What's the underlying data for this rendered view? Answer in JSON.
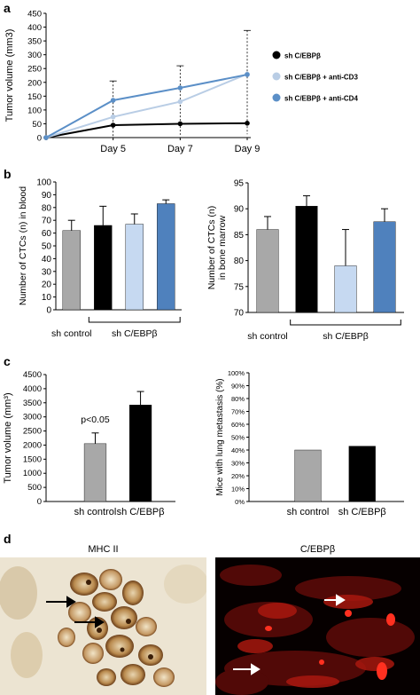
{
  "panels": {
    "a": "a",
    "b": "b",
    "c": "c",
    "d": "d"
  },
  "colors": {
    "black": "#000000",
    "grey": "#a8a8a8",
    "light_blue": "#c6d9f1",
    "mid_blue": "#4f81bd",
    "line_light": "#b9cde5",
    "line_blue": "#5b8fc7"
  },
  "micrographs": {
    "left_title": "MHC II",
    "right_title": "C/EBPβ"
  },
  "chart_data": [
    {
      "id": "a",
      "type": "line",
      "ylabel": "Tumor volume (mm3)",
      "xlabel": "",
      "x": [
        "",
        "Day 5",
        "Day 7",
        "Day 9"
      ],
      "ylim": [
        0,
        450
      ],
      "yticks": [
        0,
        50,
        100,
        150,
        200,
        250,
        300,
        350,
        400,
        450
      ],
      "series": [
        {
          "name": "sh C/EBPβ",
          "color": "#000000",
          "values": [
            0,
            45,
            50,
            52
          ]
        },
        {
          "name": "sh C/EBPβ + anti-CD3",
          "color": "#b9cde5",
          "values": [
            0,
            75,
            130,
            230
          ]
        },
        {
          "name": "sh C/EBPβ + anti-CD4",
          "color": "#5b8fc7",
          "values": [
            0,
            135,
            180,
            228
          ]
        }
      ],
      "legend": "right"
    },
    {
      "id": "b-left",
      "type": "bar",
      "ylabel": "Number of CTCs (n) in blood",
      "ylim": [
        0,
        100
      ],
      "yticks": [
        0,
        10,
        20,
        30,
        40,
        50,
        60,
        70,
        80,
        90,
        100
      ],
      "values": [
        62,
        66,
        67,
        83
      ],
      "errors": [
        8,
        15,
        8,
        3
      ],
      "colors": [
        "#a8a8a8",
        "#000000",
        "#c6d9f1",
        "#4f81bd"
      ],
      "group_labels": [
        "sh control",
        "sh C/EBPβ"
      ]
    },
    {
      "id": "b-right",
      "type": "bar",
      "ylabel": "Number of CTCs (n) in bone marrow",
      "ylim": [
        70,
        95
      ],
      "yticks": [
        70,
        75,
        80,
        85,
        90,
        95
      ],
      "values": [
        86,
        90.5,
        79,
        87.5
      ],
      "errors": [
        2.5,
        2,
        7,
        2.5
      ],
      "colors": [
        "#a8a8a8",
        "#000000",
        "#c6d9f1",
        "#4f81bd"
      ],
      "group_labels": [
        "sh control",
        "sh C/EBPβ"
      ]
    },
    {
      "id": "c-left",
      "type": "bar",
      "ylabel": "Tumor volume (mm³)",
      "ylim": [
        0,
        4500
      ],
      "yticks": [
        0,
        500,
        1000,
        1500,
        2000,
        2500,
        3000,
        3500,
        4000,
        4500
      ],
      "categories": [
        "sh control",
        "sh C/EBPβ"
      ],
      "values": [
        2050,
        3420
      ],
      "errors": [
        380,
        480
      ],
      "colors": [
        "#a8a8a8",
        "#000000"
      ],
      "annotation": "p<0.05"
    },
    {
      "id": "c-right",
      "type": "bar",
      "ylabel": "Mice with lung metastasis (%)",
      "ylim": [
        0,
        100
      ],
      "yticks": [
        "0%",
        "10%",
        "20%",
        "30%",
        "40%",
        "50%",
        "60%",
        "70%",
        "80%",
        "90%",
        "100%"
      ],
      "categories": [
        "sh control",
        "sh C/EBPβ"
      ],
      "values": [
        40,
        43
      ],
      "colors": [
        "#a8a8a8",
        "#000000"
      ]
    }
  ]
}
